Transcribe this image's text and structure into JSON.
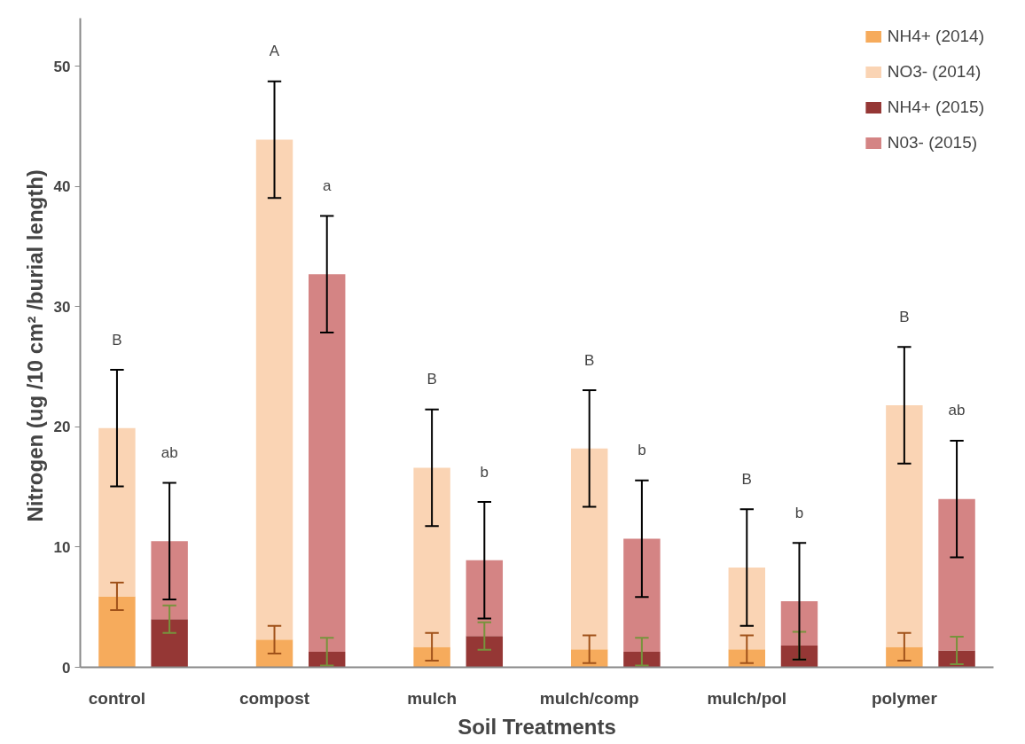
{
  "chart_data": {
    "type": "bar",
    "stacked": true,
    "xlabel": "Soil Treatments",
    "ylabel": "Nitrogen  (ug /10 cm² /burial length)",
    "categories": [
      "control",
      null,
      null,
      "compost",
      null,
      null,
      "mulch",
      null,
      null,
      "mulch/comp",
      null,
      null,
      "mulch/pol",
      null,
      null,
      "polymer",
      null
    ],
    "series": [
      {
        "name": "NH4+ (2014)",
        "color": "#f6ab5c",
        "values": [
          5.9,
          null,
          null,
          2.3,
          null,
          null,
          1.7,
          null,
          null,
          1.5,
          null,
          null,
          1.5,
          null,
          null,
          1.7,
          null
        ],
        "errors": [
          1.15,
          null,
          null,
          1.15,
          null,
          null,
          1.15,
          null,
          null,
          1.15,
          null,
          null,
          1.15,
          null,
          null,
          1.15,
          null
        ]
      },
      {
        "name": "NO3- (2014)",
        "color": "#fad4b4",
        "values": [
          14.0,
          null,
          null,
          41.6,
          null,
          null,
          14.9,
          null,
          null,
          16.7,
          null,
          null,
          6.8,
          null,
          null,
          20.1,
          null
        ],
        "errors": [
          4.85,
          null,
          null,
          4.85,
          null,
          null,
          4.85,
          null,
          null,
          4.85,
          null,
          null,
          4.85,
          null,
          null,
          4.85,
          null
        ]
      },
      {
        "name": "NH4+ (2015)",
        "color": "#953735",
        "values": [
          null,
          4.0,
          null,
          null,
          1.3,
          null,
          null,
          2.6,
          null,
          null,
          1.3,
          null,
          null,
          1.8,
          null,
          null,
          1.4
        ],
        "errors": [
          null,
          1.15,
          null,
          null,
          1.15,
          null,
          null,
          1.15,
          null,
          null,
          1.15,
          null,
          null,
          1.15,
          null,
          null,
          1.15
        ]
      },
      {
        "name": "N03- (2015)",
        "color": "#d48484",
        "values": [
          null,
          6.5,
          null,
          null,
          31.4,
          null,
          null,
          6.3,
          null,
          null,
          9.4,
          null,
          null,
          3.7,
          null,
          null,
          12.6
        ],
        "errors": [
          null,
          4.85,
          null,
          null,
          4.85,
          null,
          null,
          4.85,
          null,
          null,
          4.85,
          null,
          null,
          4.85,
          null,
          null,
          4.85
        ]
      }
    ],
    "annotations": [
      "B",
      "ab",
      "A",
      "a",
      "B",
      "b",
      "B",
      "b",
      "B",
      "b",
      "B",
      "ab"
    ],
    "ylim": [
      0,
      54
    ],
    "yticks": [
      0,
      10,
      20,
      30,
      40,
      50
    ],
    "grid": false,
    "legend": "top right"
  }
}
